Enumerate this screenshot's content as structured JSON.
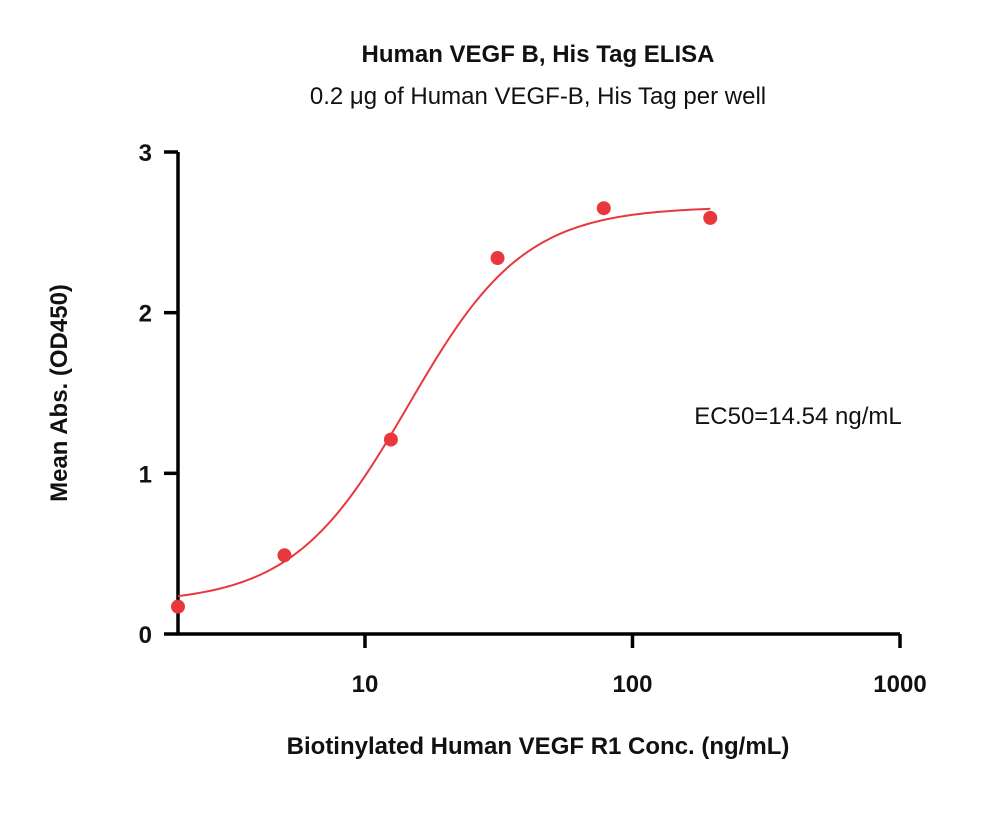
{
  "chart_data": {
    "type": "scatter",
    "title": "Human VEGF B, His Tag ELISA",
    "subtitle": "0.2 μg of Human VEGF-B, His Tag per well",
    "xlabel": "Biotinylated Human VEGF R1 Conc. (ng/mL)",
    "ylabel": "Mean Abs. (OD450)",
    "x_scale": "log",
    "xlim": [
      2,
      1000
    ],
    "ylim": [
      0,
      3
    ],
    "x_ticks": [
      10,
      100,
      1000
    ],
    "x_tick_labels": [
      "10",
      "100",
      "1000"
    ],
    "y_ticks": [
      0,
      1,
      2,
      3
    ],
    "y_tick_labels": [
      "0",
      "1",
      "2",
      "3"
    ],
    "series": [
      {
        "x": [
          2.0,
          5.0,
          12.5,
          31.3,
          78.1,
          195.3
        ],
        "y": [
          0.17,
          0.49,
          1.21,
          2.34,
          2.65,
          2.59
        ],
        "fit": {
          "model": "4PL",
          "bottom": 0.19,
          "top": 2.66,
          "ec50": 14.54,
          "hill": 2.0
        }
      }
    ],
    "annotation": "EC50=14.54 ng/mL",
    "colors": {
      "series": "#e8383d",
      "axis": "#000000"
    },
    "grid": false
  }
}
